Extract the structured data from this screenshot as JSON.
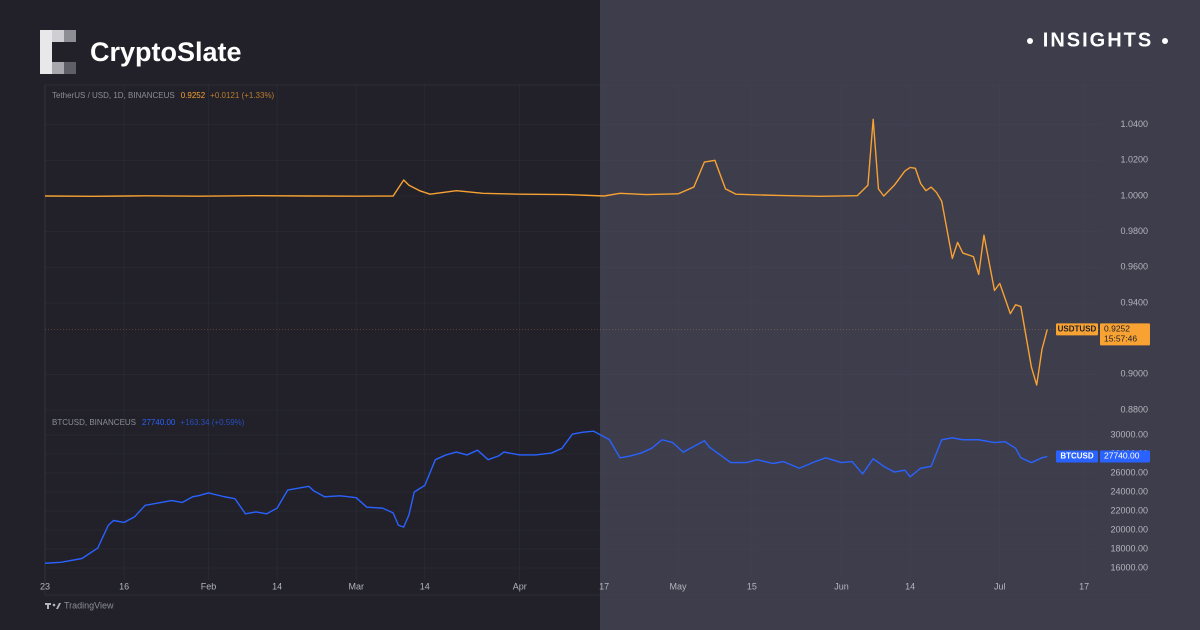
{
  "brand": "CryptoSlate",
  "badge": "INSIGHTS",
  "footer": "TradingView",
  "chart_data": [
    {
      "type": "line",
      "subtitle": "TetherUS / USD, 1D, BINANCEUS",
      "last_label": "0.9252",
      "change_label": "+0.0121 (+1.33%)",
      "time_label": "15:57:46",
      "x": [
        "2023-01-01",
        "2023-01-10",
        "2023-01-20",
        "2023-01-30",
        "2023-02-10",
        "2023-02-20",
        "2023-03-01",
        "2023-03-08",
        "2023-03-10",
        "2023-03-11",
        "2023-03-13",
        "2023-03-15",
        "2023-03-20",
        "2023-03-25",
        "2023-04-01",
        "2023-04-10",
        "2023-04-17",
        "2023-04-20",
        "2023-04-25",
        "2023-05-01",
        "2023-05-04",
        "2023-05-06",
        "2023-05-08",
        "2023-05-10",
        "2023-05-12",
        "2023-05-20",
        "2023-05-28",
        "2023-06-04",
        "2023-06-06",
        "2023-06-07",
        "2023-06-08",
        "2023-06-09",
        "2023-06-11",
        "2023-06-13",
        "2023-06-14",
        "2023-06-15",
        "2023-06-16",
        "2023-06-17",
        "2023-06-18",
        "2023-06-19",
        "2023-06-20",
        "2023-06-22",
        "2023-06-23",
        "2023-06-24",
        "2023-06-26",
        "2023-06-27",
        "2023-06-28",
        "2023-06-30",
        "2023-07-01",
        "2023-07-03",
        "2023-07-04",
        "2023-07-05",
        "2023-07-07",
        "2023-07-08",
        "2023-07-09",
        "2023-07-10"
      ],
      "series": [
        {
          "name": "USDTUSD",
          "color": "#f7a233",
          "values": [
            1.0,
            0.9998,
            1.0001,
            0.9999,
            1.0002,
            1.0,
            0.9999,
            1.0,
            1.009,
            1.006,
            1.003,
            1.001,
            1.003,
            1.0015,
            1.001,
            1.0008,
            1.0,
            1.0015,
            1.0008,
            1.0012,
            1.005,
            1.019,
            1.02,
            1.004,
            1.001,
            1.0003,
            0.9998,
            1.0002,
            1.006,
            1.043,
            1.004,
            1.0,
            1.006,
            1.014,
            1.016,
            1.0155,
            1.007,
            1.003,
            1.005,
            1.002,
            0.997,
            0.965,
            0.974,
            0.968,
            0.966,
            0.956,
            0.978,
            0.947,
            0.951,
            0.934,
            0.939,
            0.938,
            0.904,
            0.894,
            0.914,
            0.9252
          ]
        }
      ],
      "xlim": [
        "2023-01-01",
        "2023-07-20"
      ],
      "ylim": [
        0.88,
        1.06
      ],
      "yticks": [
        {
          "value": 0.88,
          "label": "0.8800"
        },
        {
          "value": 0.9,
          "label": "0.9000"
        },
        {
          "value": 0.94,
          "label": "0.9400"
        },
        {
          "value": 0.96,
          "label": "0.9600"
        },
        {
          "value": 0.98,
          "label": "0.9800"
        },
        {
          "value": 1.0,
          "label": "1.0000"
        },
        {
          "value": 1.02,
          "label": "1.0200"
        },
        {
          "value": 1.04,
          "label": "1.0400"
        }
      ],
      "grid": true
    },
    {
      "type": "line",
      "subtitle": "BTCUSD, BINANCEUS",
      "last_label": "27740.00",
      "change_label": "+163.34 (+0.59%)",
      "x": [
        "2023-01-01",
        "2023-01-04",
        "2023-01-08",
        "2023-01-11",
        "2023-01-13",
        "2023-01-14",
        "2023-01-16",
        "2023-01-18",
        "2023-01-20",
        "2023-01-22",
        "2023-01-25",
        "2023-01-27",
        "2023-01-29",
        "2023-01-30",
        "2023-02-01",
        "2023-02-04",
        "2023-02-06",
        "2023-02-08",
        "2023-02-10",
        "2023-02-12",
        "2023-02-14",
        "2023-02-16",
        "2023-02-18",
        "2023-02-20",
        "2023-02-21",
        "2023-02-23",
        "2023-02-26",
        "2023-03-01",
        "2023-03-03",
        "2023-03-06",
        "2023-03-08",
        "2023-03-09",
        "2023-03-10",
        "2023-03-11",
        "2023-03-12",
        "2023-03-14",
        "2023-03-16",
        "2023-03-18",
        "2023-03-20",
        "2023-03-22",
        "2023-03-24",
        "2023-03-26",
        "2023-03-28",
        "2023-03-29",
        "2023-04-01",
        "2023-04-04",
        "2023-04-07",
        "2023-04-09",
        "2023-04-11",
        "2023-04-13",
        "2023-04-15",
        "2023-04-16",
        "2023-04-18",
        "2023-04-20",
        "2023-04-22",
        "2023-04-24",
        "2023-04-26",
        "2023-04-28",
        "2023-04-30",
        "2023-05-02",
        "2023-05-04",
        "2023-05-06",
        "2023-05-07",
        "2023-05-09",
        "2023-05-11",
        "2023-05-14",
        "2023-05-16",
        "2023-05-19",
        "2023-05-21",
        "2023-05-24",
        "2023-05-27",
        "2023-05-29",
        "2023-06-01",
        "2023-06-03",
        "2023-06-05",
        "2023-06-07",
        "2023-06-09",
        "2023-06-11",
        "2023-06-13",
        "2023-06-14",
        "2023-06-16",
        "2023-06-18",
        "2023-06-20",
        "2023-06-22",
        "2023-06-24",
        "2023-06-27",
        "2023-06-30",
        "2023-07-02",
        "2023-07-04",
        "2023-07-05",
        "2023-07-07",
        "2023-07-09",
        "2023-07-10"
      ],
      "series": [
        {
          "name": "BTCUSD",
          "color": "#2962ff",
          "values": [
            16500,
            16600,
            17000,
            18100,
            20500,
            21000,
            20800,
            21400,
            22600,
            22800,
            23100,
            22900,
            23500,
            23600,
            23900,
            23500,
            23300,
            21700,
            21900,
            21700,
            22300,
            24200,
            24400,
            24600,
            24100,
            23500,
            23600,
            23400,
            22400,
            22300,
            21800,
            20500,
            20300,
            21600,
            24000,
            24700,
            27400,
            27900,
            28200,
            27900,
            28400,
            27400,
            27800,
            28200,
            27900,
            27900,
            28100,
            28600,
            30100,
            30300,
            30400,
            30100,
            29500,
            27600,
            27800,
            28100,
            28600,
            29500,
            29200,
            28200,
            28800,
            29400,
            28700,
            27900,
            27100,
            27100,
            27400,
            27000,
            27200,
            26500,
            27200,
            27600,
            27100,
            27200,
            25900,
            27500,
            26700,
            26100,
            26300,
            25600,
            26500,
            26700,
            29500,
            29700,
            29500,
            29500,
            29200,
            29300,
            28600,
            27600,
            27100,
            27600,
            27740
          ]
        }
      ],
      "xlim": [
        "2023-01-01",
        "2023-07-20"
      ],
      "ylim": [
        15000,
        31000
      ],
      "yticks": [
        {
          "value": 16000,
          "label": "16000.00"
        },
        {
          "value": 18000,
          "label": "18000.00"
        },
        {
          "value": 20000,
          "label": "20000.00"
        },
        {
          "value": 22000,
          "label": "22000.00"
        },
        {
          "value": 24000,
          "label": "24000.00"
        },
        {
          "value": 26000,
          "label": "26000.00"
        },
        {
          "value": 28000,
          "label": "28000.00"
        },
        {
          "value": 30000,
          "label": "30000.00"
        }
      ],
      "xticks": [
        {
          "value": "2023-01-01",
          "label": "23"
        },
        {
          "value": "2023-01-16",
          "label": "16"
        },
        {
          "value": "2023-02-01",
          "label": "Feb"
        },
        {
          "value": "2023-02-14",
          "label": "14"
        },
        {
          "value": "2023-03-01",
          "label": "Mar"
        },
        {
          "value": "2023-03-14",
          "label": "14"
        },
        {
          "value": "2023-04-01",
          "label": "Apr"
        },
        {
          "value": "2023-04-17",
          "label": "17"
        },
        {
          "value": "2023-05-01",
          "label": "May"
        },
        {
          "value": "2023-05-15",
          "label": "15"
        },
        {
          "value": "2023-06-01",
          "label": "Jun"
        },
        {
          "value": "2023-06-14",
          "label": "14"
        },
        {
          "value": "2023-07-01",
          "label": "Jul"
        },
        {
          "value": "2023-07-17",
          "label": "17"
        }
      ],
      "grid": true
    }
  ]
}
